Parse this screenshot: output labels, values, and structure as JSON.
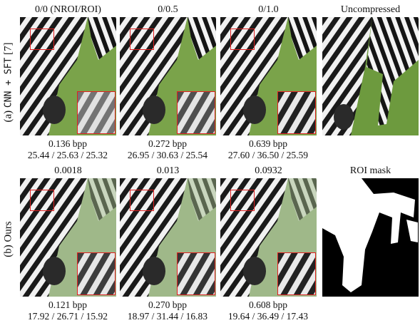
{
  "row_labels": {
    "a_prefix": "(a)",
    "a_method": "CNN + SFT",
    "a_ref": "[7]",
    "b": "(b) Ours"
  },
  "row_a": {
    "titles": [
      "0/0 (NROI/ROI)",
      "0/0.5",
      "0/1.0",
      "Uncompressed"
    ],
    "captions": [
      {
        "bpp": "0.136 bpp",
        "psnr": "25.44 / 25.63 / 25.32"
      },
      {
        "bpp": "0.272 bpp",
        "psnr": "26.95 / 30.63 / 25.54"
      },
      {
        "bpp": "0.639 bpp",
        "psnr": "27.60 / 36.50 / 25.59"
      }
    ]
  },
  "row_b": {
    "titles": [
      "0.0018",
      "0.013",
      "0.0932",
      "ROI mask"
    ],
    "captions": [
      {
        "bpp": "0.121 bpp",
        "psnr": "17.92 / 26.71 / 15.92"
      },
      {
        "bpp": "0.270 bpp",
        "psnr": "18.97 / 31.44 / 16.83"
      },
      {
        "bpp": "0.608 bpp",
        "psnr": "19.64 / 36.49 / 17.43"
      }
    ]
  },
  "colors": {
    "grass": "#7aa34a",
    "grass_blur": "#9fb889",
    "stripe_dark": "#1a1a1a",
    "stripe_light": "#f1f1f1",
    "roi_box": "#e02020"
  }
}
